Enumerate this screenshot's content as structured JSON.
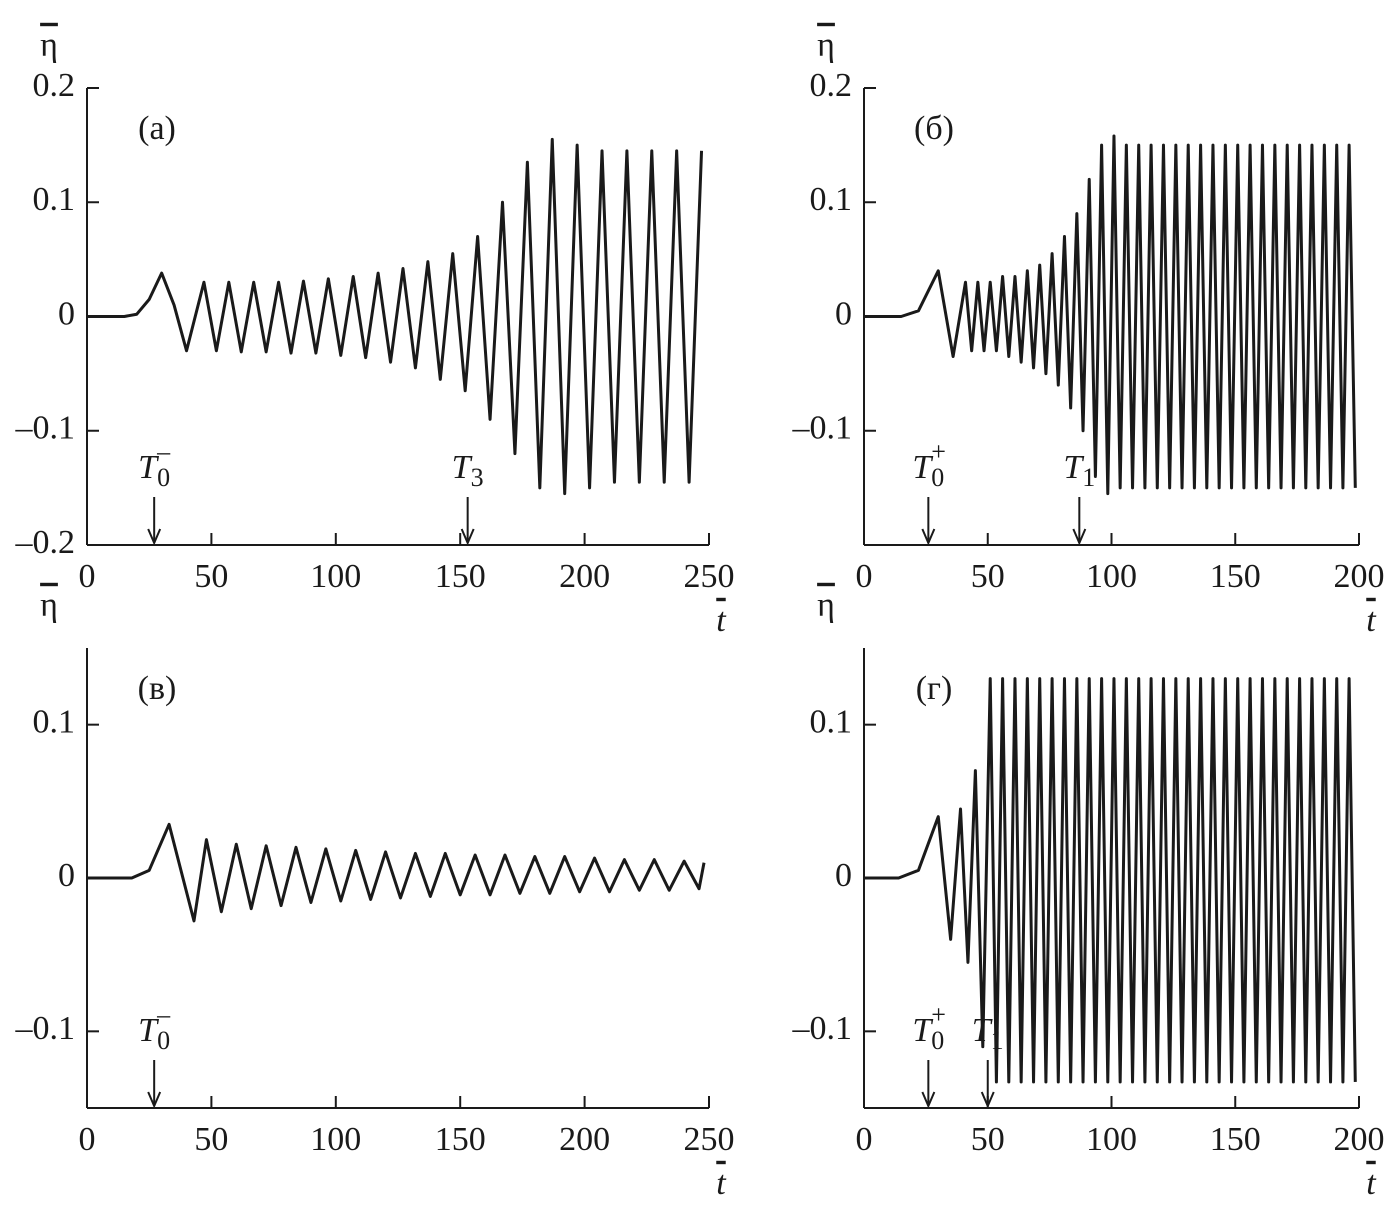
{
  "chart_data": [
    {
      "type": "line",
      "panel_label": "(а)",
      "y_label": "η",
      "x_label": "t",
      "xlim": [
        0,
        250
      ],
      "ylim": [
        -0.2,
        0.2
      ],
      "xticks": [
        0,
        50,
        100,
        150,
        200,
        250
      ],
      "yticks": [
        {
          "value": -0.2,
          "label": "–0.2"
        },
        {
          "value": -0.1,
          "label": "–0.1"
        },
        0,
        0.1,
        0.2
      ],
      "color": "#1a1a1a",
      "x": [
        0,
        15,
        20,
        25,
        30,
        35,
        40,
        47,
        52,
        57,
        62,
        67,
        72,
        77,
        82,
        87,
        92,
        97,
        102,
        107,
        112,
        117,
        122,
        127,
        132,
        137,
        142,
        147,
        152,
        157,
        162,
        167,
        172,
        177,
        182,
        187,
        192,
        197,
        202,
        207,
        212,
        217,
        222,
        227,
        232,
        237,
        242,
        247
      ],
      "values": [
        0,
        0,
        0.002,
        0.015,
        0.038,
        0.01,
        -0.03,
        0.03,
        -0.03,
        0.03,
        -0.031,
        0.03,
        -0.031,
        0.03,
        -0.032,
        0.031,
        -0.032,
        0.033,
        -0.034,
        0.035,
        -0.036,
        0.038,
        -0.04,
        0.042,
        -0.045,
        0.048,
        -0.055,
        0.055,
        -0.065,
        0.07,
        -0.09,
        0.1,
        -0.12,
        0.135,
        -0.15,
        0.155,
        -0.155,
        0.15,
        -0.15,
        0.145,
        -0.145,
        0.145,
        -0.145,
        0.145,
        -0.145,
        0.145,
        -0.145,
        0.145
      ],
      "annotations": [
        {
          "x": 27,
          "base": "T",
          "sub": "0",
          "sup": "–"
        },
        {
          "x": 153,
          "base": "T",
          "sub": "3"
        }
      ]
    },
    {
      "type": "line",
      "panel_label": "(б)",
      "y_label": "η",
      "x_label": "t",
      "xlim": [
        0,
        200
      ],
      "ylim": [
        -0.2,
        0.2
      ],
      "xticks": [
        0,
        50,
        100,
        150,
        200
      ],
      "yticks": [
        {
          "value": -0.1,
          "label": "–0.1"
        },
        0,
        0.1,
        0.2
      ],
      "color": "#1a1a1a",
      "x": [
        0,
        15,
        22,
        30,
        36,
        41,
        43.5,
        46,
        48.5,
        51,
        53.5,
        56,
        58.5,
        61,
        63.5,
        66,
        68.5,
        71,
        73.5,
        76,
        78.5,
        81,
        83.5,
        86,
        88.5,
        91,
        93.5,
        96,
        98.5,
        101,
        103.5,
        106,
        108.5,
        111,
        113.5,
        116,
        118.5,
        121,
        123.5,
        126,
        128.5,
        131,
        133.5,
        136,
        138.5,
        141,
        143.5,
        146,
        148.5,
        151,
        153.5,
        156,
        158.5,
        161,
        163.5,
        166,
        168.5,
        171,
        173.5,
        176,
        178.5,
        181,
        183.5,
        186,
        188.5,
        191,
        193.5,
        196,
        198.5
      ],
      "values": [
        0,
        0,
        0.005,
        0.04,
        -0.035,
        0.03,
        -0.03,
        0.03,
        -0.03,
        0.03,
        -0.03,
        0.035,
        -0.035,
        0.035,
        -0.04,
        0.04,
        -0.045,
        0.045,
        -0.05,
        0.055,
        -0.06,
        0.07,
        -0.08,
        0.09,
        -0.1,
        0.12,
        -0.14,
        0.15,
        -0.155,
        0.158,
        -0.15,
        0.15,
        -0.15,
        0.15,
        -0.15,
        0.15,
        -0.15,
        0.15,
        -0.15,
        0.15,
        -0.15,
        0.15,
        -0.15,
        0.15,
        -0.15,
        0.15,
        -0.15,
        0.15,
        -0.15,
        0.15,
        -0.15,
        0.15,
        -0.15,
        0.15,
        -0.15,
        0.15,
        -0.15,
        0.15,
        -0.15,
        0.15,
        -0.15,
        0.15,
        -0.15,
        0.15,
        -0.15,
        0.15,
        -0.15,
        0.15,
        -0.15
      ],
      "annotations": [
        {
          "x": 26,
          "base": "T",
          "sub": "0",
          "sup": "+"
        },
        {
          "x": 87,
          "base": "T",
          "sub": "1"
        }
      ]
    },
    {
      "type": "line",
      "panel_label": "(в)",
      "y_label": "η",
      "x_label": "t",
      "xlim": [
        0,
        250
      ],
      "ylim": [
        -0.15,
        0.15
      ],
      "xticks": [
        0,
        50,
        100,
        150,
        200,
        250
      ],
      "yticks": [
        {
          "value": -0.1,
          "label": "–0.1"
        },
        0,
        0.1
      ],
      "color": "#1a1a1a",
      "x": [
        0,
        18,
        25,
        33,
        43,
        48,
        54,
        60,
        66,
        72,
        78,
        84,
        90,
        96,
        102,
        108,
        114,
        120,
        126,
        132,
        138,
        144,
        150,
        156,
        162,
        168,
        174,
        180,
        186,
        192,
        198,
        204,
        210,
        216,
        222,
        228,
        234,
        240,
        246,
        248
      ],
      "values": [
        0,
        0,
        0.005,
        0.035,
        -0.028,
        0.025,
        -0.022,
        0.022,
        -0.02,
        0.021,
        -0.018,
        0.02,
        -0.016,
        0.019,
        -0.015,
        0.018,
        -0.014,
        0.017,
        -0.013,
        0.016,
        -0.012,
        0.016,
        -0.011,
        0.015,
        -0.011,
        0.015,
        -0.01,
        0.014,
        -0.01,
        0.014,
        -0.009,
        0.013,
        -0.009,
        0.012,
        -0.008,
        0.012,
        -0.008,
        0.011,
        -0.007,
        0.01
      ],
      "annotations": [
        {
          "x": 27,
          "base": "T",
          "sub": "0",
          "sup": "–"
        }
      ]
    },
    {
      "type": "line",
      "panel_label": "(г)",
      "y_label": "η",
      "x_label": "t",
      "xlim": [
        0,
        200
      ],
      "ylim": [
        -0.15,
        0.15
      ],
      "xticks": [
        0,
        50,
        100,
        150,
        200
      ],
      "yticks": [
        {
          "value": -0.1,
          "label": "–0.1"
        },
        0,
        0.1
      ],
      "color": "#1a1a1a",
      "x": [
        0,
        14,
        22,
        30,
        35,
        39,
        42,
        45,
        48,
        51,
        53.5,
        56,
        58.5,
        61,
        63.5,
        66,
        68.5,
        71,
        73.5,
        76,
        78.5,
        81,
        83.5,
        86,
        88.5,
        91,
        93.5,
        96,
        98.5,
        101,
        103.5,
        106,
        108.5,
        111,
        113.5,
        116,
        118.5,
        121,
        123.5,
        126,
        128.5,
        131,
        133.5,
        136,
        138.5,
        141,
        143.5,
        146,
        148.5,
        151,
        153.5,
        156,
        158.5,
        161,
        163.5,
        166,
        168.5,
        171,
        173.5,
        176,
        178.5,
        181,
        183.5,
        186,
        188.5,
        191,
        193.5,
        196,
        198.5
      ],
      "values": [
        0,
        0,
        0.005,
        0.04,
        -0.04,
        0.045,
        -0.055,
        0.07,
        -0.11,
        0.13,
        -0.133,
        0.13,
        -0.133,
        0.13,
        -0.133,
        0.13,
        -0.133,
        0.13,
        -0.133,
        0.13,
        -0.133,
        0.13,
        -0.133,
        0.13,
        -0.133,
        0.13,
        -0.133,
        0.13,
        -0.133,
        0.13,
        -0.133,
        0.13,
        -0.133,
        0.13,
        -0.133,
        0.13,
        -0.133,
        0.13,
        -0.133,
        0.13,
        -0.133,
        0.13,
        -0.133,
        0.13,
        -0.133,
        0.13,
        -0.133,
        0.13,
        -0.133,
        0.13,
        -0.133,
        0.13,
        -0.133,
        0.13,
        -0.133,
        0.13,
        -0.133,
        0.13,
        -0.133,
        0.13,
        -0.133,
        0.13,
        -0.133,
        0.13,
        -0.133,
        0.13,
        -0.133,
        0.13,
        -0.133
      ],
      "annotations": [
        {
          "x": 26,
          "base": "T",
          "sub": "0",
          "sup": "+"
        },
        {
          "x": 50,
          "base": "T",
          "sub": "1"
        }
      ]
    }
  ]
}
